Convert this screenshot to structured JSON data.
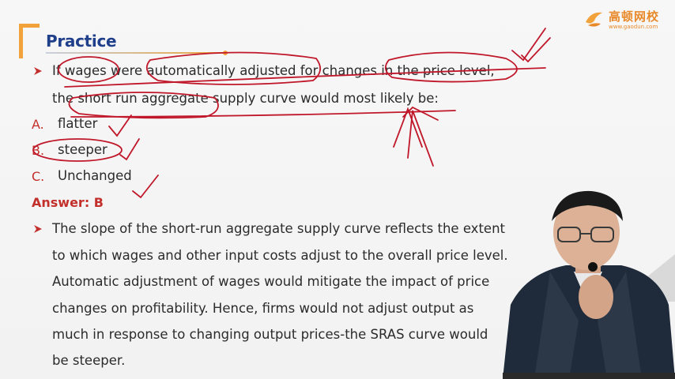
{
  "header": {
    "title": "Practice"
  },
  "logo": {
    "name": "高顿网校",
    "url": "www.gaodun.com"
  },
  "question": {
    "line1": "If wages were automatically adjusted for changes in the price level,",
    "line2": "the short run aggregate supply curve would most likely be:"
  },
  "options": [
    {
      "letter": "A.",
      "text": "flatter"
    },
    {
      "letter": "B.",
      "text": "steeper"
    },
    {
      "letter": "C.",
      "text": "Unchanged"
    }
  ],
  "answer": {
    "label": "Answer: B"
  },
  "explanation": {
    "lines": [
      "The slope of the short-run aggregate supply curve reflects the extent",
      "to which wages and other input costs adjust to the overall price level.",
      "Automatic adjustment of wages would mitigate the impact of price",
      "changes on profitability. Hence, firms would not adjust output as",
      "much in response to changing output prices-the SRAS curve would",
      "be steeper."
    ]
  },
  "colors": {
    "accent_orange": "#f2a23a",
    "title_blue": "#1f3f8a",
    "answer_red": "#c3302c",
    "ink_red": "#c0182a"
  }
}
